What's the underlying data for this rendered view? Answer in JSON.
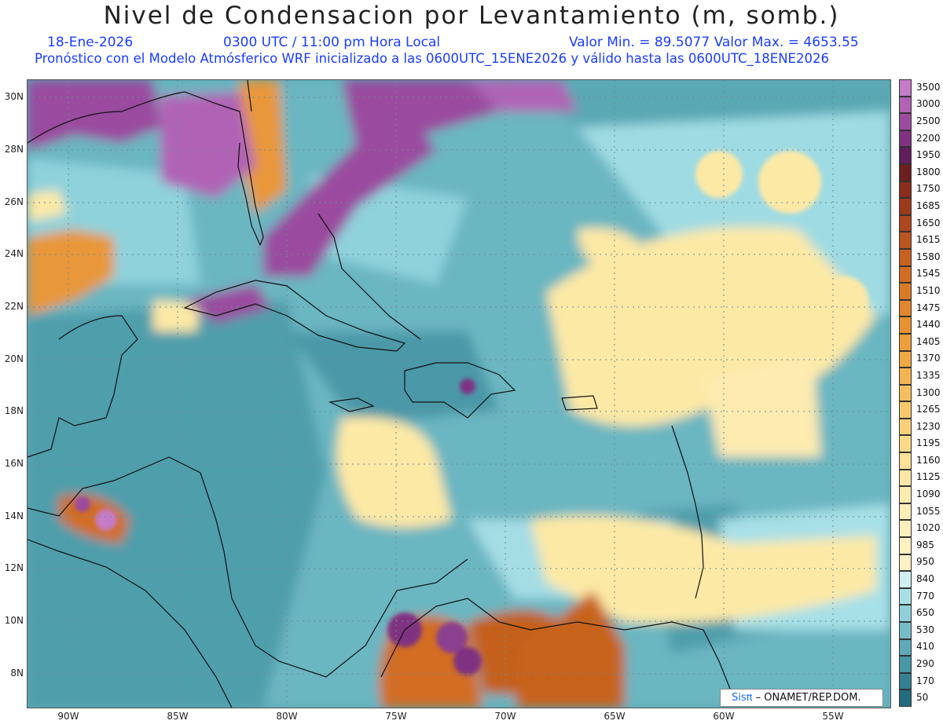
{
  "header": {
    "title": "Nivel de Condensacion por Levantamiento (m, somb.)",
    "date": "18-Ene-2026",
    "time": "0300 UTC / 11:00 pm Hora Local",
    "min_max": "Valor Min. = 89.5077  Valor Max. = 4653.55",
    "model_info": "Pronóstico con el Modelo Atmósferico WRF inicializado a las 0600UTC_15ENE2026 y válido hasta las  0600UTC_18ENE2026"
  },
  "axes": {
    "lat_labels": [
      "30N",
      "28N",
      "26N",
      "24N",
      "22N",
      "20N",
      "18N",
      "16N",
      "14N",
      "12N",
      "10N",
      "8N"
    ],
    "lon_labels": [
      "90W",
      "85W",
      "80W",
      "75W",
      "70W",
      "65W",
      "60W",
      "55W"
    ]
  },
  "legend": {
    "levels": [
      "3500",
      "3000",
      "2500",
      "2200",
      "1950",
      "1800",
      "1750",
      "1685",
      "1650",
      "1615",
      "1580",
      "1545",
      "1510",
      "1475",
      "1440",
      "1405",
      "1370",
      "1335",
      "1300",
      "1265",
      "1230",
      "1195",
      "1160",
      "1125",
      "1090",
      "1055",
      "1020",
      "985",
      "950",
      "840",
      "770",
      "650",
      "530",
      "410",
      "290",
      "170",
      "50"
    ],
    "colors": [
      "#c57cc7",
      "#b063b5",
      "#9a4c9f",
      "#7f3381",
      "#5e1f5c",
      "#6b1f1f",
      "#8a2d1c",
      "#9c3a1c",
      "#ad471d",
      "#bb541f",
      "#c86120",
      "#d16d23",
      "#d97a27",
      "#e0862c",
      "#e69232",
      "#eb9e3a",
      "#efa945",
      "#f2b451",
      "#f5bf5f",
      "#f7c86c",
      "#f9d17a",
      "#fbd989",
      "#fce198",
      "#fde7a6",
      "#fdebb0",
      "#fdeeb8",
      "#feefbd",
      "#fff0c2",
      "#fff2c6",
      "#cfeff0",
      "#a9e0e6",
      "#8fcfd8",
      "#76bcc8",
      "#5fa9b8",
      "#4896a6",
      "#347f92",
      "#236b7f"
    ]
  },
  "credit": {
    "logo": "Sisπ",
    "org": "– ONAMET/REP.DOM."
  },
  "colors": {
    "title_text": "#222222",
    "subtitle_text": "#1a3cff",
    "coast": "#111111",
    "ocean_teal": "#5aa8b4"
  }
}
